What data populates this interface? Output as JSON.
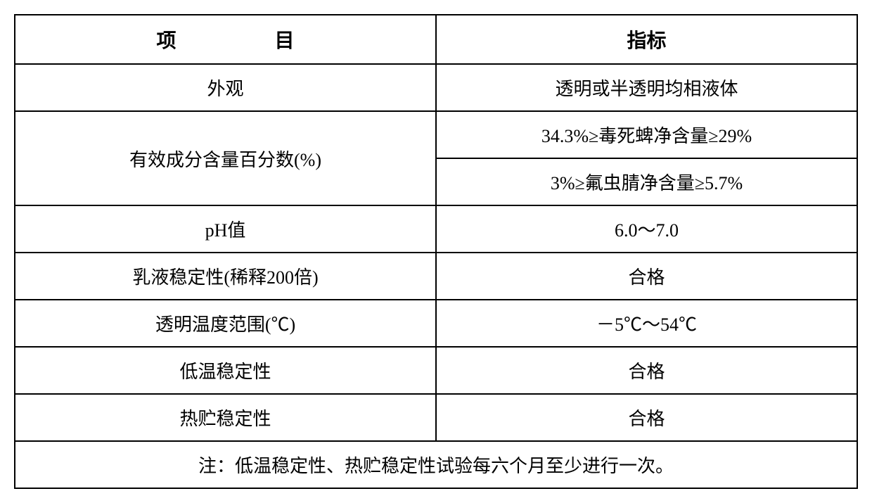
{
  "table": {
    "type": "table",
    "border_color": "#000000",
    "border_width": 2,
    "background_color": "#ffffff",
    "text_color": "#000000",
    "header_fontsize": 28,
    "cell_fontsize": 26,
    "font_family": "SimSun",
    "columns": [
      {
        "label_part1": "项",
        "label_part2": "目",
        "width_pct": 50,
        "align": "center",
        "bold": true
      },
      {
        "label": "指标",
        "width_pct": 50,
        "align": "center",
        "bold": true
      }
    ],
    "rows": [
      {
        "item": "外观",
        "indicator": "透明或半透明均相液体"
      },
      {
        "item": "有效成分含量百分数(%)",
        "indicator_a": "34.3%≥毒死蜱净含量≥29%",
        "indicator_b": "3%≥氟虫腈净含量≥5.7%",
        "rowspan": 2
      },
      {
        "item": "pH值",
        "indicator": "6.0～7.0"
      },
      {
        "item": "乳液稳定性(稀释200倍)",
        "indicator": "合格"
      },
      {
        "item": "透明温度范围(℃)",
        "indicator": "－5℃～54℃"
      },
      {
        "item": "低温稳定性",
        "indicator": "合格"
      },
      {
        "item": "热贮稳定性",
        "indicator": "合格"
      }
    ],
    "footer_note": "注：低温稳定性、热贮稳定性试验每六个月至少进行一次。"
  }
}
